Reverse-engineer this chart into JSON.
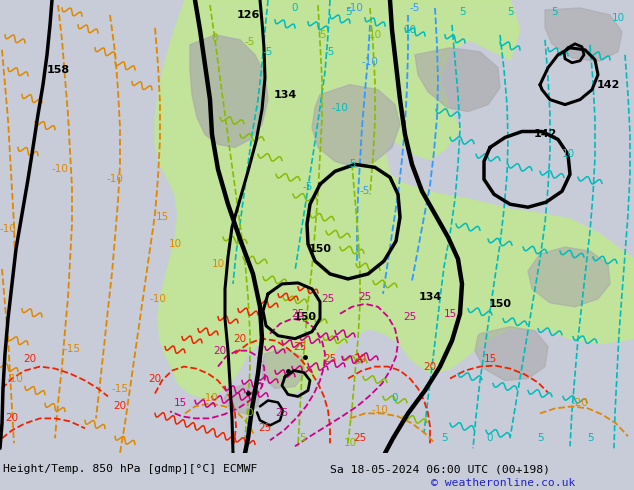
{
  "title_left": "Height/Temp. 850 hPa [gdmp][°C] ECMWF",
  "title_right": "Sa 18-05-2024 06:00 UTC (00+198)",
  "copyright": "© weatheronline.co.uk",
  "bg_color": "#c8ccd8",
  "map_bg": "#d8d8d8",
  "green_fill": "#c0e890",
  "gray_fill": "#aaaaaa",
  "black_contour": "#000000",
  "cyan_color": "#00bbbb",
  "blue_color": "#3399ff",
  "orange_color": "#dd8800",
  "red_color": "#ee2200",
  "magenta_color": "#cc0088",
  "green_color": "#88bb00",
  "copyright_color": "#2222cc",
  "figsize": [
    6.34,
    4.9
  ],
  "dpi": 100
}
